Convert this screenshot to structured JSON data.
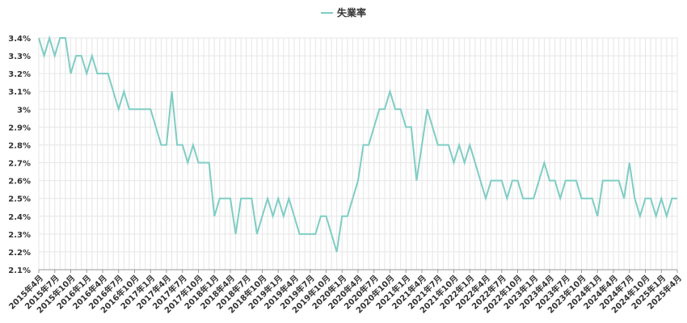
{
  "chart_data": {
    "type": "line",
    "categories": [
      "2015年4月",
      null,
      null,
      "2015年7月",
      null,
      null,
      "2015年10月",
      null,
      null,
      "2016年1月",
      null,
      null,
      "2016年4月",
      null,
      null,
      "2016年7月",
      null,
      null,
      "2016年10月",
      null,
      null,
      "2017年1月",
      null,
      null,
      "2017年4月",
      null,
      null,
      "2017年7月",
      null,
      null,
      "2017年10月",
      null,
      null,
      "2018年1月",
      null,
      null,
      "2018年4月",
      null,
      null,
      "2018年7月",
      null,
      null,
      "2018年10月",
      null,
      null,
      "2019年1月",
      null,
      null,
      "2019年4月",
      null,
      null,
      "2019年7月",
      null,
      null,
      "2019年10月",
      null,
      null,
      "2020年1月",
      null,
      null,
      "2020年4月",
      null,
      null,
      "2020年7月",
      null,
      null,
      "2020年10月",
      null,
      null,
      "2021年1月",
      null,
      null,
      "2021年4月",
      null,
      null,
      "2021年7月",
      null,
      null,
      "2021年10月",
      null,
      null,
      "2022年1月",
      null,
      null,
      "2022年4月",
      null,
      null,
      "2022年7月",
      null,
      null,
      "2022年10月",
      null,
      null,
      "2023年1月",
      null,
      null,
      "2023年4月",
      null,
      null,
      "2023年7月",
      null,
      null,
      "2023年10月",
      null,
      null,
      "2024年1月",
      null,
      null,
      "2024年4月",
      null,
      null,
      "2024年7月",
      null,
      null,
      "2024年10月",
      null,
      null,
      "2025年1月",
      null,
      null,
      "2025年4月"
    ],
    "series": [
      {
        "name": "失業率",
        "color": "#7ecdc4",
        "values": [
          3.4,
          3.3,
          3.4,
          3.3,
          3.4,
          3.4,
          3.2,
          3.3,
          3.3,
          3.2,
          3.3,
          3.2,
          3.2,
          3.2,
          3.1,
          3.0,
          3.1,
          3.0,
          3.0,
          3.0,
          3.0,
          3.0,
          2.9,
          2.8,
          2.8,
          3.1,
          2.8,
          2.8,
          2.7,
          2.8,
          2.7,
          2.7,
          2.7,
          2.4,
          2.5,
          2.5,
          2.5,
          2.3,
          2.5,
          2.5,
          2.5,
          2.3,
          2.4,
          2.5,
          2.4,
          2.5,
          2.4,
          2.5,
          2.4,
          2.3,
          2.3,
          2.3,
          2.3,
          2.4,
          2.4,
          2.3,
          2.2,
          2.4,
          2.4,
          2.5,
          2.6,
          2.8,
          2.8,
          2.9,
          3.0,
          3.0,
          3.1,
          3.0,
          3.0,
          2.9,
          2.9,
          2.6,
          2.8,
          3.0,
          2.9,
          2.8,
          2.8,
          2.8,
          2.7,
          2.8,
          2.7,
          2.8,
          2.7,
          2.6,
          2.5,
          2.6,
          2.6,
          2.6,
          2.5,
          2.6,
          2.6,
          2.5,
          2.5,
          2.5,
          2.6,
          2.7,
          2.6,
          2.6,
          2.5,
          2.6,
          2.6,
          2.6,
          2.5,
          2.5,
          2.5,
          2.4,
          2.6,
          2.6,
          2.6,
          2.6,
          2.5,
          2.7,
          2.5,
          2.4,
          2.5,
          2.5,
          2.4,
          2.5,
          2.4,
          2.5,
          2.5
        ]
      }
    ],
    "ylim": [
      2.1,
      3.4
    ],
    "yticks": [
      {
        "value": 2.1,
        "label": "2.1%"
      },
      {
        "value": 2.2,
        "label": "2.2%"
      },
      {
        "value": 2.3,
        "label": "2.3%"
      },
      {
        "value": 2.4,
        "label": "2.4%"
      },
      {
        "value": 2.5,
        "label": "2.5%"
      },
      {
        "value": 2.6,
        "label": "2.6%"
      },
      {
        "value": 2.7,
        "label": "2.7%"
      },
      {
        "value": 2.8,
        "label": "2.8%"
      },
      {
        "value": 2.9,
        "label": "2.9%"
      },
      {
        "value": 3.0,
        "label": "3%"
      },
      {
        "value": 3.1,
        "label": "3.1%"
      },
      {
        "value": 3.2,
        "label": "3.2%"
      },
      {
        "value": 3.3,
        "label": "3.3%"
      },
      {
        "value": 3.4,
        "label": "3.4%"
      }
    ],
    "grid": true,
    "legend": "top"
  }
}
